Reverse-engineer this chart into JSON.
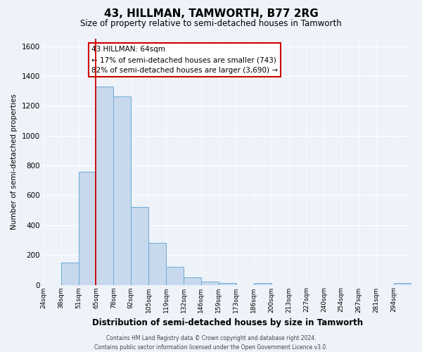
{
  "title": "43, HILLMAN, TAMWORTH, B77 2RG",
  "subtitle": "Size of property relative to semi-detached houses in Tamworth",
  "xlabel": "Distribution of semi-detached houses by size in Tamworth",
  "ylabel": "Number of semi-detached properties",
  "bin_labels": [
    "24sqm",
    "38sqm",
    "51sqm",
    "65sqm",
    "78sqm",
    "92sqm",
    "105sqm",
    "119sqm",
    "132sqm",
    "146sqm",
    "159sqm",
    "173sqm",
    "186sqm",
    "200sqm",
    "213sqm",
    "227sqm",
    "240sqm",
    "254sqm",
    "267sqm",
    "281sqm",
    "294sqm"
  ],
  "bin_edges": [
    0,
    1,
    2,
    3,
    4,
    5,
    6,
    7,
    8,
    9,
    10,
    11,
    12,
    13,
    14,
    15,
    16,
    17,
    18,
    19,
    20
  ],
  "bar_values": [
    0,
    150,
    760,
    1330,
    1265,
    520,
    280,
    120,
    50,
    20,
    10,
    0,
    10,
    0,
    0,
    0,
    0,
    0,
    0,
    0,
    10
  ],
  "bar_color": "#c8d9ee",
  "bar_edge_color": "#6aaad4",
  "property_bin": 3,
  "ylim": [
    0,
    1650
  ],
  "yticks": [
    0,
    200,
    400,
    600,
    800,
    1000,
    1200,
    1400,
    1600
  ],
  "annotation_title": "43 HILLMAN: 64sqm",
  "annotation_line1": "← 17% of semi-detached houses are smaller (743)",
  "annotation_line2": "82% of semi-detached houses are larger (3,690) →",
  "annotation_box_facecolor": "#ffffff",
  "annotation_box_edgecolor": "#cc0000",
  "footer_line1": "Contains HM Land Registry data © Crown copyright and database right 2024.",
  "footer_line2": "Contains public sector information licensed under the Open Government Licence v3.0.",
  "background_color": "#eef2f9",
  "grid_color": "#ffffff"
}
